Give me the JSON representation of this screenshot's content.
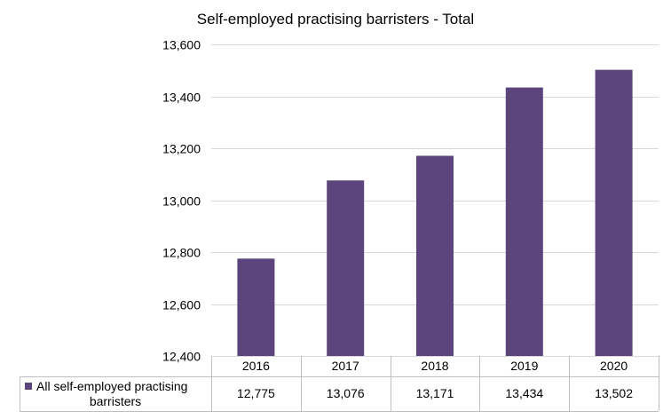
{
  "chart_data": {
    "type": "bar",
    "title": "Self-employed practising barristers - Total",
    "categories": [
      "2016",
      "2017",
      "2018",
      "2019",
      "2020"
    ],
    "series": [
      {
        "name": "All self-employed practising barristers",
        "name_lines": [
          "All self-employed practising",
          "barristers"
        ],
        "values": [
          12775,
          13076,
          13171,
          13434,
          13502
        ],
        "labels": [
          "12,775",
          "13,076",
          "13,171",
          "13,434",
          "13,502"
        ],
        "color": "#5b457c"
      }
    ],
    "ylim": [
      12400,
      13600
    ],
    "yticks": [
      12400,
      12600,
      12800,
      13000,
      13200,
      13400,
      13600
    ],
    "ytick_labels": [
      "12,400",
      "12,600",
      "12,800",
      "13,000",
      "13,200",
      "13,400",
      "13,600"
    ],
    "xlabel": "",
    "ylabel": "",
    "grid": true,
    "legend": "data-table"
  }
}
